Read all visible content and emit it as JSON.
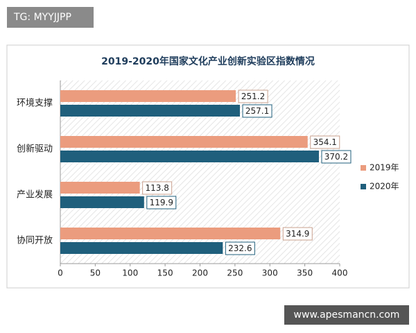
{
  "watermarks": {
    "top_left": "TG: MYYJJPP",
    "bottom_right": "www.apesmancn.com"
  },
  "chart_data": {
    "type": "hbar",
    "title": "2019-2020年国家文化产业创新实验区指数情况",
    "categories": [
      "环境支撑",
      "创新驱动",
      "产业发展",
      "协同开放"
    ],
    "series": [
      {
        "name": "2019年",
        "color": "#eb9c7e",
        "values": [
          251.2,
          354.1,
          113.8,
          314.9
        ]
      },
      {
        "name": "2020年",
        "color": "#1f5f7c",
        "values": [
          257.1,
          370.2,
          119.9,
          232.6
        ]
      }
    ],
    "xlim": [
      0,
      400
    ],
    "xticks": [
      0,
      50,
      100,
      150,
      200,
      250,
      300,
      350,
      400
    ],
    "legend": "right"
  }
}
